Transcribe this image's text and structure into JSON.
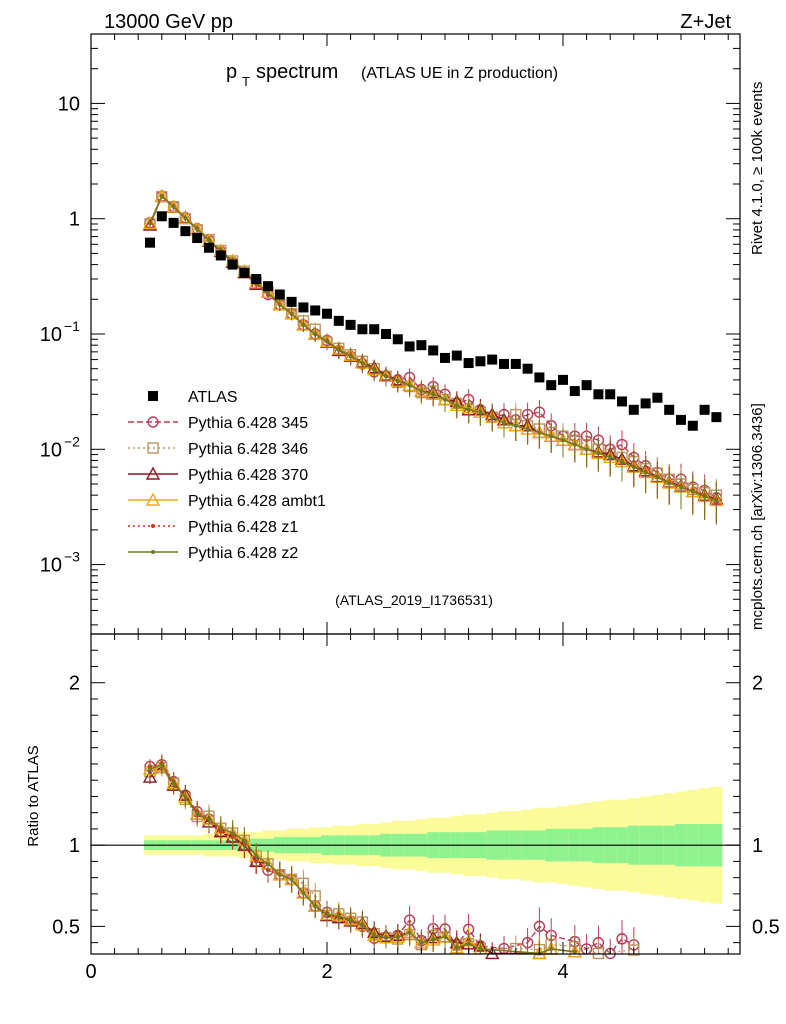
{
  "header": {
    "left": "13000 GeV pp",
    "right": "Z+Jet"
  },
  "chart_data": {
    "type": "scatter",
    "title_main": "p",
    "title_sub": "T",
    "title_rest": " spectrum",
    "title_paren": "(ATLAS UE in Z production)",
    "side_label_top": "Rivet 4.1.0, ≥ 100k events",
    "side_label_bottom": "mcplots.cern.ch [arXiv:1306.3436]",
    "analysis_id": "(ATLAS_2019_I1736531)",
    "ylabel_ratio": "Ratio to ATLAS",
    "x_range": [
      0,
      5.5
    ],
    "y_range_log": [
      0.00025,
      40
    ],
    "ratio_range": [
      0.33,
      2.3
    ],
    "x_ticks": [
      "0",
      "2",
      "4"
    ],
    "ratio_ticks": [
      "0.5",
      "1",
      "2"
    ],
    "ratio_ticks_right": [
      "0.5",
      "1",
      "2"
    ],
    "y_tick_labels": [
      {
        "base": "10",
        "exp": "",
        "value": 10
      },
      {
        "base": "1",
        "exp": "",
        "value": 1
      },
      {
        "base": "10",
        "exp": "−1",
        "value": 0.1
      },
      {
        "base": "10",
        "exp": "−2",
        "value": 0.01
      },
      {
        "base": "10",
        "exp": "−3",
        "value": 0.001
      }
    ],
    "x": [
      0.5,
      0.6,
      0.7,
      0.8,
      0.9,
      1.0,
      1.1,
      1.2,
      1.3,
      1.4,
      1.5,
      1.6,
      1.7,
      1.8,
      1.9,
      2.0,
      2.1,
      2.2,
      2.3,
      2.4,
      2.5,
      2.6,
      2.7,
      2.8,
      2.9,
      3.0,
      3.1,
      3.2,
      3.3,
      3.4,
      3.5,
      3.6,
      3.7,
      3.8,
      3.9,
      4.0,
      4.1,
      4.2,
      4.3,
      4.4,
      4.5,
      4.6,
      4.7,
      4.8,
      4.9,
      5.0,
      5.1,
      5.2,
      5.3
    ],
    "data_series": {
      "name": "ATLAS",
      "values": [
        0.62,
        1.05,
        0.92,
        0.78,
        0.68,
        0.56,
        0.48,
        0.4,
        0.34,
        0.3,
        0.26,
        0.22,
        0.19,
        0.17,
        0.16,
        0.15,
        0.13,
        0.12,
        0.11,
        0.11,
        0.1,
        0.09,
        0.078,
        0.08,
        0.072,
        0.062,
        0.065,
        0.056,
        0.058,
        0.06,
        0.055,
        0.055,
        0.05,
        0.042,
        0.036,
        0.04,
        0.032,
        0.036,
        0.03,
        0.03,
        0.026,
        0.022,
        0.025,
        0.028,
        0.022,
        0.018,
        0.016,
        0.022,
        0.019
      ]
    },
    "series": [
      {
        "name": "Pythia 6.428 345",
        "color": "#b93a57",
        "marker": "circle",
        "line": "dashed",
        "values": [
          0.92,
          1.57,
          1.28,
          1.02,
          0.82,
          0.65,
          0.52,
          0.42,
          0.34,
          0.27,
          0.22,
          0.18,
          0.15,
          0.12,
          0.1,
          0.088,
          0.072,
          0.064,
          0.055,
          0.047,
          0.043,
          0.04,
          0.042,
          0.033,
          0.035,
          0.03,
          0.025,
          0.027,
          0.022,
          0.019,
          0.02,
          0.018,
          0.02,
          0.021,
          0.016,
          0.013,
          0.013,
          0.013,
          0.012,
          0.01,
          0.011,
          0.0085,
          0.0072,
          0.0063,
          0.0055,
          0.0055,
          0.0047,
          0.0044,
          0.0038
        ]
      },
      {
        "name": "Pythia 6.428 346",
        "color": "#b8965d",
        "marker": "square",
        "line": "dotted",
        "values": [
          0.9,
          1.55,
          1.27,
          1.0,
          0.8,
          0.66,
          0.53,
          0.43,
          0.35,
          0.28,
          0.23,
          0.18,
          0.15,
          0.13,
          0.11,
          0.085,
          0.075,
          0.066,
          0.058,
          0.05,
          0.043,
          0.038,
          0.035,
          0.031,
          0.032,
          0.027,
          0.025,
          0.022,
          0.021,
          0.019,
          0.017,
          0.02,
          0.016,
          0.015,
          0.014,
          0.013,
          0.012,
          0.011,
          0.01,
          0.009,
          0.0085,
          0.0078,
          0.0068,
          0.0062,
          0.0055,
          0.005,
          0.0045,
          0.0042,
          0.004
        ]
      },
      {
        "name": "Pythia 6.428 370",
        "color": "#8b1620",
        "marker": "triangle",
        "line": "solid",
        "values": [
          0.88,
          1.56,
          1.26,
          1.02,
          0.81,
          0.64,
          0.52,
          0.42,
          0.34,
          0.27,
          0.23,
          0.18,
          0.15,
          0.12,
          0.1,
          0.085,
          0.072,
          0.064,
          0.057,
          0.051,
          0.044,
          0.04,
          0.036,
          0.032,
          0.031,
          0.027,
          0.026,
          0.022,
          0.022,
          0.02,
          0.018,
          0.016,
          0.016,
          0.014,
          0.013,
          0.012,
          0.011,
          0.01,
          0.0095,
          0.009,
          0.0082,
          0.0072,
          0.0065,
          0.0058,
          0.0052,
          0.0048,
          0.0043,
          0.004,
          0.0037
        ]
      },
      {
        "name": "Pythia 6.428 ambt1",
        "color": "#efa815",
        "marker": "triangle",
        "line": "solid",
        "values": [
          0.91,
          1.56,
          1.27,
          1.01,
          0.81,
          0.65,
          0.53,
          0.43,
          0.35,
          0.28,
          0.23,
          0.18,
          0.15,
          0.12,
          0.1,
          0.086,
          0.074,
          0.065,
          0.056,
          0.049,
          0.043,
          0.039,
          0.036,
          0.032,
          0.03,
          0.027,
          0.024,
          0.023,
          0.021,
          0.019,
          0.017,
          0.016,
          0.015,
          0.014,
          0.013,
          0.012,
          0.011,
          0.01,
          0.0092,
          0.0085,
          0.0078,
          0.007,
          0.0063,
          0.0057,
          0.0051,
          0.0047,
          0.0043,
          0.0039,
          0.0036
        ]
      },
      {
        "name": "Pythia 6.428 z1",
        "color": "#de2a1c",
        "marker": "dot",
        "line": "dotted",
        "values": [
          0.92,
          1.58,
          1.28,
          1.01,
          0.82,
          0.65,
          0.52,
          0.42,
          0.34,
          0.27,
          0.22,
          0.18,
          0.15,
          0.12,
          0.1,
          0.087,
          0.073,
          0.064,
          0.056,
          0.049,
          0.043,
          0.039,
          0.036,
          0.032,
          0.03,
          0.027,
          0.024,
          0.022,
          0.021,
          0.019,
          0.017,
          0.016,
          0.015,
          0.014,
          0.013,
          0.012,
          0.011,
          0.01,
          0.0093,
          0.0086,
          0.0079,
          0.0071,
          0.0064,
          0.0058,
          0.0052,
          0.0048,
          0.0044,
          0.004,
          0.0037
        ]
      },
      {
        "name": "Pythia 6.428 z2",
        "color": "#6f7a1c",
        "marker": "dot",
        "line": "solid",
        "values": [
          0.91,
          1.57,
          1.27,
          1.01,
          0.81,
          0.65,
          0.53,
          0.43,
          0.35,
          0.28,
          0.23,
          0.18,
          0.15,
          0.12,
          0.1,
          0.086,
          0.073,
          0.065,
          0.056,
          0.049,
          0.043,
          0.039,
          0.036,
          0.032,
          0.03,
          0.027,
          0.024,
          0.022,
          0.021,
          0.019,
          0.017,
          0.016,
          0.015,
          0.014,
          0.013,
          0.012,
          0.011,
          0.01,
          0.0093,
          0.0085,
          0.0078,
          0.007,
          0.0063,
          0.0057,
          0.0051,
          0.0047,
          0.0043,
          0.0039,
          0.0036
        ]
      }
    ],
    "uncertainty_band": {
      "inner_color": "#8ef28e",
      "outer_color": "#fbfb9a",
      "inner_halfwidth": [
        0.03,
        0.03,
        0.03,
        0.03,
        0.03,
        0.03,
        0.03,
        0.03,
        0.04,
        0.04,
        0.04,
        0.05,
        0.05,
        0.05,
        0.05,
        0.06,
        0.06,
        0.06,
        0.06,
        0.06,
        0.07,
        0.07,
        0.07,
        0.07,
        0.08,
        0.08,
        0.08,
        0.08,
        0.08,
        0.09,
        0.09,
        0.09,
        0.09,
        0.09,
        0.1,
        0.1,
        0.1,
        0.1,
        0.11,
        0.11,
        0.11,
        0.12,
        0.12,
        0.12,
        0.12,
        0.13,
        0.13,
        0.13,
        0.13
      ],
      "outer_halfwidth": [
        0.06,
        0.06,
        0.06,
        0.06,
        0.06,
        0.07,
        0.07,
        0.07,
        0.08,
        0.08,
        0.09,
        0.09,
        0.1,
        0.1,
        0.11,
        0.11,
        0.12,
        0.12,
        0.13,
        0.13,
        0.14,
        0.15,
        0.15,
        0.16,
        0.17,
        0.17,
        0.18,
        0.19,
        0.19,
        0.2,
        0.21,
        0.21,
        0.22,
        0.23,
        0.23,
        0.24,
        0.25,
        0.26,
        0.27,
        0.28,
        0.28,
        0.29,
        0.3,
        0.31,
        0.32,
        0.33,
        0.34,
        0.35,
        0.36
      ]
    },
    "legend_position": "middle-left",
    "colors": {
      "axis": "#000000",
      "analysis_label": "#999999",
      "side_label": "#808080"
    }
  }
}
